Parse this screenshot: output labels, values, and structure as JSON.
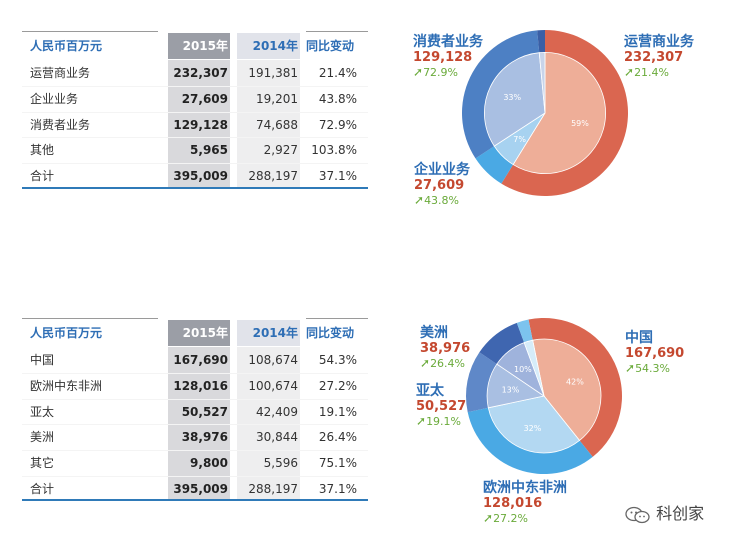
{
  "tables": [
    {
      "headers": [
        "人民币百万元",
        "2015年",
        "2014年",
        "同比变动"
      ],
      "rows": [
        [
          "运营商业务",
          "232,307",
          "191,381",
          "21.4%"
        ],
        [
          "企业业务",
          "27,609",
          "19,201",
          "43.8%"
        ],
        [
          "消费者业务",
          "129,128",
          "74,688",
          "72.9%"
        ],
        [
          "其他",
          "5,965",
          "2,927",
          "103.8%"
        ],
        [
          "合计",
          "395,009",
          "288,197",
          "37.1%"
        ]
      ]
    },
    {
      "headers": [
        "人民币百万元",
        "2015年",
        "2014年",
        "同比变动"
      ],
      "rows": [
        [
          "中国",
          "167,690",
          "108,674",
          "54.3%"
        ],
        [
          "欧洲中东非洲",
          "128,016",
          "100,674",
          "27.2%"
        ],
        [
          "亚太",
          "50,527",
          "42,409",
          "19.1%"
        ],
        [
          "美洲",
          "38,976",
          "30,844",
          "26.4%"
        ],
        [
          "其它",
          "9,800",
          "5,596",
          "75.1%"
        ],
        [
          "合计",
          "395,009",
          "288,197",
          "37.1%"
        ]
      ]
    }
  ],
  "chart_data": [
    {
      "type": "pie",
      "title": "",
      "slices": [
        {
          "name": "运营商业务",
          "value": 232307,
          "pct_label": "59%",
          "change": "21.4%",
          "color": "#da6650",
          "inner_color": "#eeae98"
        },
        {
          "name": "消费者业务",
          "value": 129128,
          "pct_label": "33%",
          "change": "72.9%",
          "color": "#4d80c4",
          "inner_color": "#a9bfe2"
        },
        {
          "name": "企业业务",
          "value": 27609,
          "pct_label": "7%",
          "change": "43.8%",
          "color": "#4aa9e4",
          "inner_color": "#a7d2f0"
        },
        {
          "name": "其他",
          "value": 5965,
          "pct_label": "",
          "change": "",
          "color": "#3a5fa6",
          "inner_color": "#c8d4ea"
        }
      ],
      "labels": [
        {
          "name": "运营商业务",
          "value": "232,307",
          "change": "21.4%"
        },
        {
          "name": "消费者业务",
          "value": "129,128",
          "change": "72.9%"
        },
        {
          "name": "企业业务",
          "value": "27,609",
          "change": "43.8%"
        }
      ]
    },
    {
      "type": "pie",
      "title": "",
      "slices": [
        {
          "name": "中国",
          "value": 167690,
          "pct_label": "42%",
          "change": "54.3%",
          "color": "#da6650",
          "inner_color": "#eeae98"
        },
        {
          "name": "欧洲中东非洲",
          "value": 128016,
          "pct_label": "32%",
          "change": "27.2%",
          "color": "#4aa9e4",
          "inner_color": "#b3d8f2"
        },
        {
          "name": "亚太",
          "value": 50527,
          "pct_label": "13%",
          "change": "19.1%",
          "color": "#5f88c8",
          "inner_color": "#a9bfe2"
        },
        {
          "name": "美洲",
          "value": 38976,
          "pct_label": "10%",
          "change": "26.4%",
          "color": "#3f66b0",
          "inner_color": "#9fb3dc"
        },
        {
          "name": "其它",
          "value": 9800,
          "pct_label": "",
          "change": "",
          "color": "#7cc3ee",
          "inner_color": "#d6ecf9"
        }
      ],
      "labels": [
        {
          "name": "中国",
          "value": "167,690",
          "change": "54.3%"
        },
        {
          "name": "欧洲中东非洲",
          "value": "128,016",
          "change": "27.2%"
        },
        {
          "name": "亚太",
          "value": "50,527",
          "change": "19.1%"
        },
        {
          "name": "美洲",
          "value": "38,976",
          "change": "26.4%"
        }
      ]
    }
  ],
  "watermark": "科创家"
}
